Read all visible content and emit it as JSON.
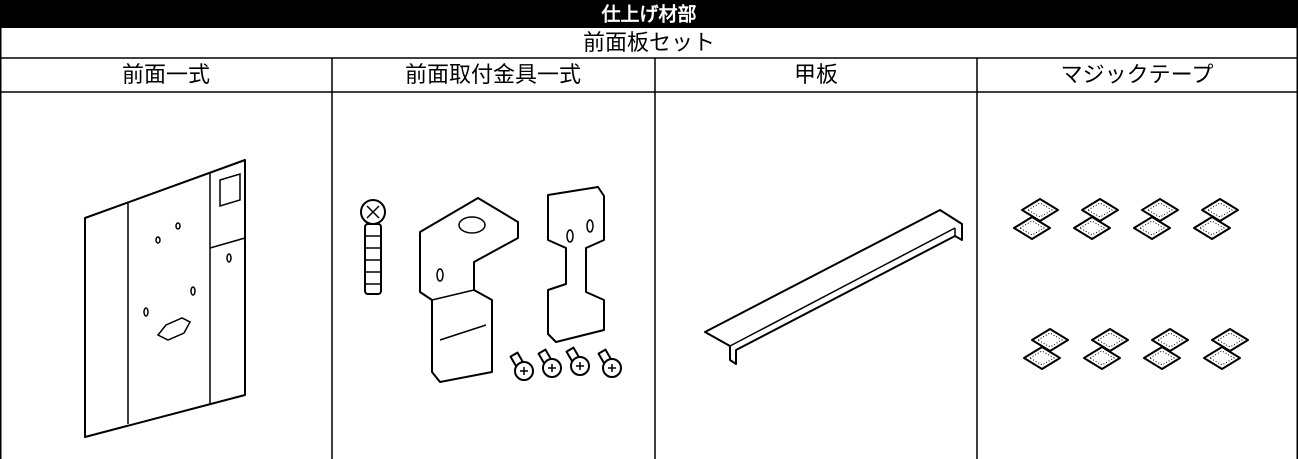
{
  "header": {
    "title": "仕上げ材部",
    "subtitle": "前面板セット"
  },
  "table": {
    "columns": [
      "前面一式",
      "前面取付金具一式",
      "甲板",
      "マジックテープ"
    ]
  }
}
